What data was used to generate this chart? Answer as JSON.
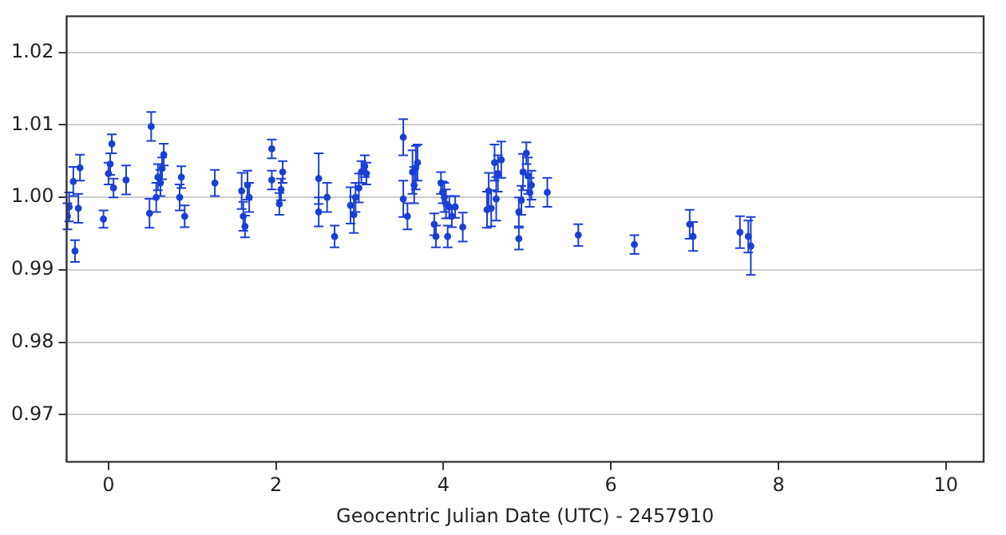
{
  "chart_data": {
    "type": "scatter",
    "xlabel": "Geocentric Julian Date (UTC) - 2457910",
    "xlim": [
      -0.5,
      10.45
    ],
    "ylim": [
      0.9635,
      1.025
    ],
    "xticks": [
      0,
      2,
      4,
      6,
      8,
      10
    ],
    "yticks": [
      {
        "value": 0.97,
        "label": "0.97"
      },
      {
        "value": 0.98,
        "label": "0.98"
      },
      {
        "value": 0.99,
        "label": "0.99"
      },
      {
        "value": 1,
        "label": "1.00"
      },
      {
        "value": 1.01,
        "label": "1.01"
      },
      {
        "value": 1.02,
        "label": "1.02"
      }
    ],
    "grid": "y",
    "legend": false,
    "marker": "circle",
    "series": [
      {
        "color": "#1a3fd6",
        "x": [
          -0.49,
          -0.47,
          -0.42,
          -0.4,
          -0.36,
          -0.34,
          -0.06,
          0,
          0.02,
          0.04,
          0.06,
          0.21,
          0.49,
          0.51,
          0.57,
          0.59,
          0.62,
          0.64,
          0.66,
          0.85,
          0.87,
          0.91,
          1.27,
          1.59,
          1.61,
          1.63,
          1.66,
          1.68,
          1.95,
          1.95,
          2.04,
          2.06,
          2.08,
          2.51,
          2.51,
          2.61,
          2.7,
          2.89,
          2.93,
          2.95,
          2.99,
          3.02,
          3.06,
          3.08,
          3.52,
          3.52,
          3.57,
          3.63,
          3.65,
          3.67,
          3.69,
          3.89,
          3.91,
          3.97,
          3.99,
          4.01,
          4.03,
          4.05,
          4.07,
          4.1,
          4.14,
          4.23,
          4.52,
          4.54,
          4.57,
          4.61,
          4.63,
          4.65,
          4.69,
          4.9,
          4.9,
          4.93,
          4.95,
          4.99,
          5.01,
          5.03,
          5.05,
          5.24,
          5.61,
          6.28,
          6.94,
          6.98,
          7.54,
          7.64,
          7.67
        ],
        "values": [
          0.9974,
          0.9987,
          1.0022,
          0.9926,
          0.9985,
          1.0041,
          0.997,
          1.0033,
          1.0046,
          1.0074,
          1.0013,
          1.0024,
          0.9978,
          1.0098,
          1,
          1.0028,
          1.002,
          1.004,
          1.0059,
          1,
          1.0028,
          0.9974,
          1.002,
          1.0009,
          0.9974,
          0.996,
          1.0017,
          1,
          1.0067,
          1.0024,
          0.9991,
          1.0011,
          1.0035,
          1.0026,
          0.998,
          1,
          0.9946,
          0.9989,
          0.9976,
          1,
          1.0013,
          1.0035,
          1.0043,
          1.0033,
          1.0083,
          0.9998,
          0.9974,
          1.0035,
          1.0017,
          1.0041,
          1.0048,
          0.9963,
          0.9946,
          1.002,
          1.0007,
          1,
          0.9991,
          0.9946,
          0.9987,
          0.9974,
          0.9987,
          0.9959,
          0.9983,
          1.0009,
          0.9985,
          1.0048,
          0.9998,
          1.0033,
          1.0052,
          0.9943,
          0.998,
          0.9996,
          1.0035,
          1.0061,
          1.003,
          1.0007,
          1.0017,
          1.0007,
          0.9948,
          0.9935,
          0.9963,
          0.9946,
          0.9952,
          0.9946,
          0.9933
        ],
        "errors": [
          0.0018,
          0.002,
          0.002,
          0.0015,
          0.002,
          0.0018,
          0.0012,
          0.0015,
          0.0015,
          0.0013,
          0.0013,
          0.002,
          0.002,
          0.002,
          0.002,
          0.0018,
          0.0018,
          0.0015,
          0.0015,
          0.0018,
          0.0015,
          0.0015,
          0.0018,
          0.0025,
          0.002,
          0.0015,
          0.002,
          0.002,
          0.0013,
          0.0013,
          0.0015,
          0.0015,
          0.0015,
          0.0035,
          0.002,
          0.002,
          0.0015,
          0.0025,
          0.0025,
          0.002,
          0.002,
          0.0015,
          0.0015,
          0.0015,
          0.0025,
          0.0025,
          0.0018,
          0.003,
          0.0025,
          0.003,
          0.0025,
          0.0015,
          0.0015,
          0.0015,
          0.0015,
          0.002,
          0.002,
          0.0015,
          0.0015,
          0.0015,
          0.0015,
          0.002,
          0.0025,
          0.0025,
          0.0025,
          0.0025,
          0.003,
          0.0025,
          0.0025,
          0.0015,
          0.002,
          0.002,
          0.0025,
          0.0015,
          0.0025,
          0.002,
          0.002,
          0.002,
          0.0015,
          0.0013,
          0.002,
          0.002,
          0.0022,
          0.0022,
          0.004
        ]
      }
    ]
  }
}
